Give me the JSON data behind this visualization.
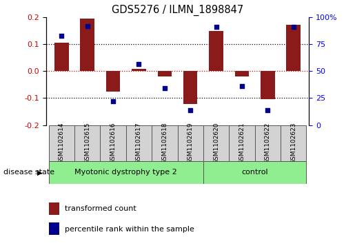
{
  "title": "GDS5276 / ILMN_1898847",
  "samples": [
    "GSM1102614",
    "GSM1102615",
    "GSM1102616",
    "GSM1102617",
    "GSM1102618",
    "GSM1102619",
    "GSM1102620",
    "GSM1102621",
    "GSM1102622",
    "GSM1102623"
  ],
  "transformed_count": [
    0.105,
    0.195,
    -0.075,
    0.01,
    -0.02,
    -0.122,
    0.15,
    -0.02,
    -0.105,
    0.172
  ],
  "percentile_rank": [
    83,
    92,
    22,
    57,
    34,
    14,
    91,
    36,
    14,
    91
  ],
  "ylim": [
    -0.2,
    0.2
  ],
  "yticks_left": [
    -0.2,
    -0.1,
    0.0,
    0.1,
    0.2
  ],
  "yticks_right": [
    0,
    25,
    50,
    75,
    100
  ],
  "bar_color": "#8B1A1A",
  "dot_color": "#00008B",
  "group1_label": "Myotonic dystrophy type 2",
  "group2_label": "control",
  "group1_count": 6,
  "group2_count": 4,
  "group1_color": "#90EE90",
  "group2_color": "#90EE90",
  "disease_state_label": "disease state",
  "legend_bar_label": "transformed count",
  "legend_dot_label": "percentile rank within the sample",
  "bar_width": 0.55
}
